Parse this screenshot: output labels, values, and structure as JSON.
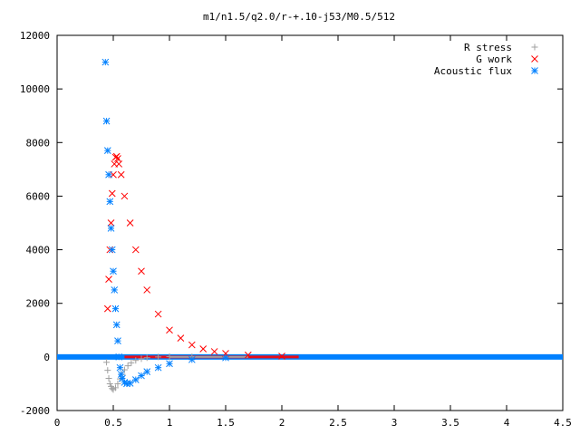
{
  "chart_data": {
    "type": "scatter",
    "title": "m1/n1.5/q2.0/r-+.10-j53/M0.5/512",
    "xlabel": "",
    "ylabel": "",
    "xlim": [
      0,
      4.5
    ],
    "ylim": [
      -2000,
      12000
    ],
    "xticks": [
      0,
      0.5,
      1,
      1.5,
      2,
      2.5,
      3,
      3.5,
      4,
      4.5
    ],
    "xtick_labels": [
      "0",
      "0.5",
      "1",
      "1.5",
      "2",
      "2.5",
      "3",
      "3.5",
      "4",
      "4.5"
    ],
    "yticks": [
      -2000,
      0,
      2000,
      4000,
      6000,
      8000,
      10000,
      12000
    ],
    "ytick_labels": [
      "-2000",
      "0",
      "2000",
      "4000",
      "6000",
      "8000",
      "10000",
      "12000"
    ],
    "grid": false,
    "legend_position": "top-right",
    "series": [
      {
        "name": "R stress",
        "marker": "plus",
        "color": "#a0a0a0",
        "x": [
          0.44,
          0.45,
          0.46,
          0.47,
          0.48,
          0.49,
          0.5,
          0.52,
          0.54,
          0.56,
          0.58,
          0.6,
          0.63,
          0.66,
          0.7,
          0.75,
          0.8,
          0.9,
          1.0,
          1.2,
          1.5
        ],
        "y": [
          -200,
          -500,
          -800,
          -1000,
          -1100,
          -1180,
          -1220,
          -1150,
          -1000,
          -820,
          -650,
          -480,
          -330,
          -220,
          -130,
          -70,
          -30,
          0,
          10,
          5,
          0
        ]
      },
      {
        "name": "G work",
        "marker": "x",
        "color": "#ff0000",
        "x": [
          0.45,
          0.46,
          0.47,
          0.48,
          0.49,
          0.5,
          0.51,
          0.52,
          0.53,
          0.54,
          0.55,
          0.57,
          0.6,
          0.65,
          0.7,
          0.75,
          0.8,
          0.9,
          1.0,
          1.1,
          1.2,
          1.3,
          1.4,
          1.5,
          1.7,
          2.0
        ],
        "y": [
          1800,
          2900,
          4000,
          5000,
          6100,
          6800,
          7200,
          7450,
          7480,
          7400,
          7200,
          6800,
          6000,
          5000,
          4000,
          3200,
          2500,
          1600,
          1000,
          700,
          450,
          300,
          200,
          130,
          70,
          30
        ]
      },
      {
        "name": "Acoustic flux",
        "marker": "star",
        "color": "#0080ff",
        "x": [
          0.43,
          0.44,
          0.45,
          0.46,
          0.47,
          0.48,
          0.49,
          0.5,
          0.51,
          0.52,
          0.53,
          0.54,
          0.55,
          0.56,
          0.57,
          0.58,
          0.6,
          0.62,
          0.65,
          0.7,
          0.75,
          0.8,
          0.9,
          1.0,
          1.2,
          1.5
        ],
        "y": [
          11000,
          8800,
          7700,
          6800,
          5800,
          4800,
          4000,
          3200,
          2500,
          1800,
          1200,
          600,
          0,
          -400,
          -650,
          -800,
          -950,
          -1000,
          -980,
          -850,
          -700,
          -550,
          -400,
          -250,
          -100,
          -30
        ]
      }
    ]
  }
}
